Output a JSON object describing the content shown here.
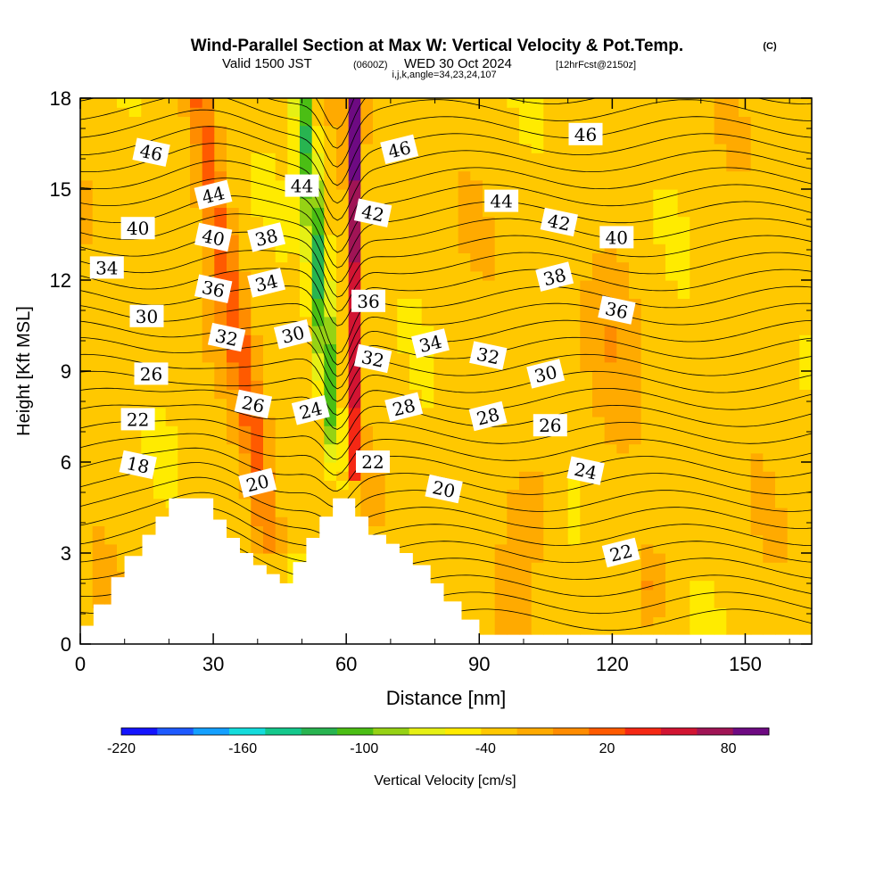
{
  "header": {
    "title": "Wind-Parallel Section at Max W: Vertical Velocity & Pot.Temp.",
    "title_unit": "(C)",
    "valid_prefix": "Valid 1500 JST",
    "valid_utc": "(0600Z)",
    "valid_date": "WED 30 Oct 2024",
    "forecast_info": "[12hrFcst@2150z]",
    "section_info": "i,j,k,angle=34,23,24,107"
  },
  "chart_data": {
    "type": "heatmap",
    "xlabel": "Distance [nm]",
    "ylabel": "Height [Kft MSL]",
    "xlim": [
      0,
      165
    ],
    "ylim": [
      0,
      18
    ],
    "x_ticks": [
      0,
      30,
      60,
      90,
      120,
      150
    ],
    "y_ticks": [
      0,
      3,
      6,
      9,
      12,
      15,
      18
    ],
    "colorbar": {
      "label": "Vertical Velocity [cm/s]",
      "range": [
        -220,
        100
      ],
      "step": 20,
      "tick_values": [
        -220,
        -160,
        -100,
        -40,
        20,
        80
      ],
      "tick_labels": [
        "-220",
        "-160",
        "-100",
        "-40",
        "20",
        "80"
      ],
      "colors": [
        "#1414ff",
        "#1e5aff",
        "#14a0ff",
        "#14dcdc",
        "#14c88c",
        "#28b450",
        "#4bbe14",
        "#96d214",
        "#e6f014",
        "#ffeb00",
        "#ffc800",
        "#ffaa00",
        "#ff8c00",
        "#ff5a00",
        "#f52814",
        "#d21432",
        "#a01455",
        "#6e0a82"
      ]
    },
    "terrain_heights_kft": [
      [
        0,
        0.6
      ],
      [
        3,
        1.3
      ],
      [
        7,
        2.2
      ],
      [
        10,
        2.9
      ],
      [
        14,
        3.6
      ],
      [
        17,
        4.2
      ],
      [
        20,
        4.8
      ],
      [
        24,
        4.8
      ],
      [
        27,
        4.8
      ],
      [
        30,
        4.1
      ],
      [
        33,
        3.5
      ],
      [
        36,
        3.0
      ],
      [
        39,
        2.6
      ],
      [
        42,
        2.3
      ],
      [
        45,
        2.0
      ],
      [
        48,
        2.7
      ],
      [
        51,
        3.5
      ],
      [
        54,
        4.2
      ],
      [
        57,
        4.8
      ],
      [
        60,
        4.8
      ],
      [
        62,
        4.2
      ],
      [
        65,
        3.6
      ],
      [
        69,
        3.3
      ],
      [
        72,
        3.0
      ],
      [
        75,
        2.6
      ],
      [
        79,
        2.0
      ],
      [
        82,
        1.4
      ],
      [
        86,
        0.8
      ],
      [
        90,
        0.3
      ],
      [
        96,
        0.3
      ],
      [
        165,
        0.3
      ]
    ],
    "theta_contours_label_values": [
      18,
      20,
      22,
      24,
      26,
      28,
      30,
      32,
      34,
      36,
      38,
      40,
      42,
      44,
      46
    ],
    "theta_labels": [
      {
        "text": "46",
        "x": 16,
        "y": 16.2
      },
      {
        "text": "44",
        "x": 30,
        "y": 14.8
      },
      {
        "text": "40",
        "x": 13,
        "y": 13.7
      },
      {
        "text": "40",
        "x": 30,
        "y": 13.4
      },
      {
        "text": "38",
        "x": 42,
        "y": 13.4
      },
      {
        "text": "34",
        "x": 6,
        "y": 12.4
      },
      {
        "text": "36",
        "x": 30,
        "y": 11.7
      },
      {
        "text": "34",
        "x": 42,
        "y": 11.9
      },
      {
        "text": "30",
        "x": 15,
        "y": 10.8
      },
      {
        "text": "32",
        "x": 33,
        "y": 10.1
      },
      {
        "text": "30",
        "x": 48,
        "y": 10.2
      },
      {
        "text": "26",
        "x": 16,
        "y": 8.9
      },
      {
        "text": "26",
        "x": 39,
        "y": 7.9
      },
      {
        "text": "24",
        "x": 52,
        "y": 7.7
      },
      {
        "text": "22",
        "x": 13,
        "y": 7.4
      },
      {
        "text": "18",
        "x": 13,
        "y": 5.9
      },
      {
        "text": "20",
        "x": 40,
        "y": 5.3
      },
      {
        "text": "44",
        "x": 50,
        "y": 15.1
      },
      {
        "text": "42",
        "x": 66,
        "y": 14.2
      },
      {
        "text": "46",
        "x": 72,
        "y": 16.3
      },
      {
        "text": "36",
        "x": 65,
        "y": 11.3
      },
      {
        "text": "32",
        "x": 66,
        "y": 9.4
      },
      {
        "text": "28",
        "x": 73,
        "y": 7.8
      },
      {
        "text": "22",
        "x": 66,
        "y": 6.0
      },
      {
        "text": "20",
        "x": 82,
        "y": 5.1
      },
      {
        "text": "34",
        "x": 79,
        "y": 9.9
      },
      {
        "text": "44",
        "x": 95,
        "y": 14.6
      },
      {
        "text": "32",
        "x": 92,
        "y": 9.5
      },
      {
        "text": "28",
        "x": 92,
        "y": 7.5
      },
      {
        "text": "46",
        "x": 114,
        "y": 16.8
      },
      {
        "text": "42",
        "x": 108,
        "y": 13.9
      },
      {
        "text": "38",
        "x": 107,
        "y": 12.1
      },
      {
        "text": "40",
        "x": 121,
        "y": 13.4
      },
      {
        "text": "36",
        "x": 121,
        "y": 11.0
      },
      {
        "text": "30",
        "x": 105,
        "y": 8.9
      },
      {
        "text": "26",
        "x": 106,
        "y": 7.2
      },
      {
        "text": "24",
        "x": 114,
        "y": 5.7
      },
      {
        "text": "22",
        "x": 122,
        "y": 3.0
      }
    ]
  }
}
